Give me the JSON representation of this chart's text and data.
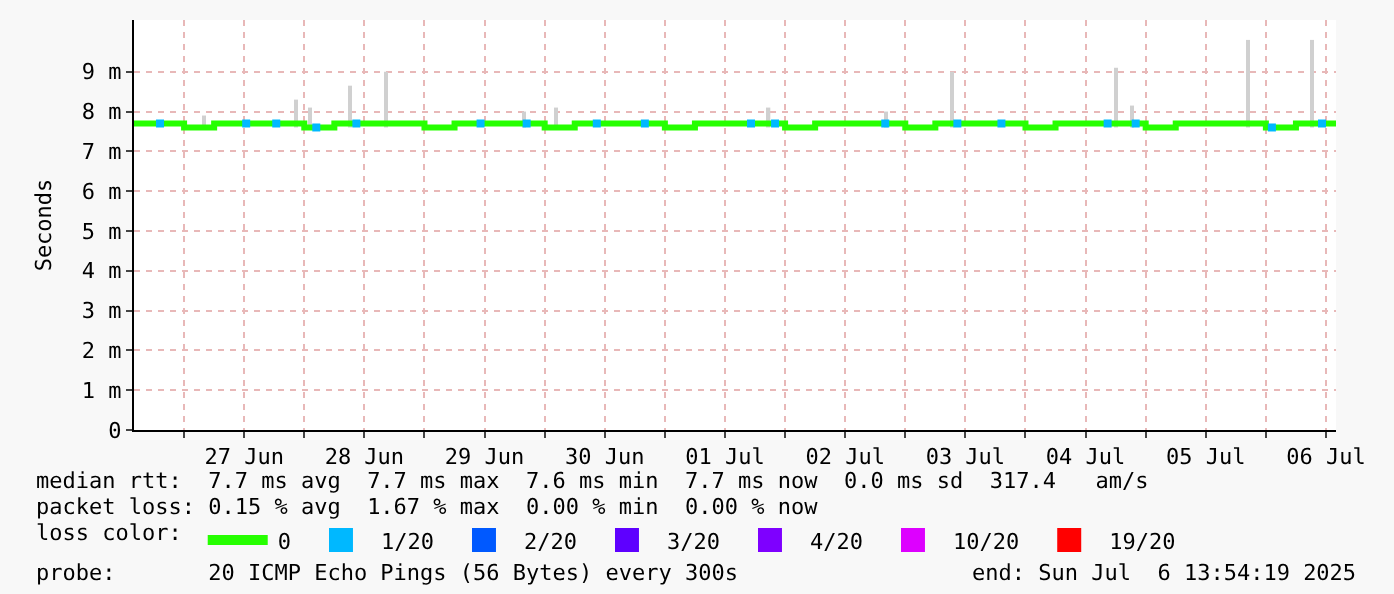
{
  "chart_data": {
    "type": "step",
    "ylabel": "Seconds",
    "legend_title": "loss color:",
    "xlim": [
      "2025-06-26T14:00",
      "2025-07-06T14:00"
    ],
    "xticks": [
      {
        "value": "2025-06-27T00:00",
        "label": null
      },
      {
        "value": "2025-06-27T12:00",
        "label": "27 Jun"
      },
      {
        "value": "2025-06-28T00:00",
        "label": null
      },
      {
        "value": "2025-06-28T12:00",
        "label": "28 Jun"
      },
      {
        "value": "2025-06-29T00:00",
        "label": null
      },
      {
        "value": "2025-06-29T12:00",
        "label": "29 Jun"
      },
      {
        "value": "2025-06-30T00:00",
        "label": null
      },
      {
        "value": "2025-06-30T12:00",
        "label": "30 Jun"
      },
      {
        "value": "2025-07-01T00:00",
        "label": null
      },
      {
        "value": "2025-07-01T12:00",
        "label": "01 Jul"
      },
      {
        "value": "2025-07-02T00:00",
        "label": null
      },
      {
        "value": "2025-07-02T12:00",
        "label": "02 Jul"
      },
      {
        "value": "2025-07-03T00:00",
        "label": null
      },
      {
        "value": "2025-07-03T12:00",
        "label": "03 Jul"
      },
      {
        "value": "2025-07-04T00:00",
        "label": null
      },
      {
        "value": "2025-07-04T12:00",
        "label": "04 Jul"
      },
      {
        "value": "2025-07-05T00:00",
        "label": null
      },
      {
        "value": "2025-07-05T12:00",
        "label": "05 Jul"
      },
      {
        "value": "2025-07-06T00:00",
        "label": null
      },
      {
        "value": "2025-07-06T12:00",
        "label": "06 Jul"
      }
    ],
    "ylim": [
      0,
      10.3
    ],
    "yticks": [
      0,
      {
        "value": 1,
        "label": "1 m"
      },
      {
        "value": 2,
        "label": "2 m"
      },
      {
        "value": 3,
        "label": "3 m"
      },
      {
        "value": 4,
        "label": "4 m"
      },
      {
        "value": 5,
        "label": "5 m"
      },
      {
        "value": 6,
        "label": "6 m"
      },
      {
        "value": 7,
        "label": "7 m"
      },
      {
        "value": 8,
        "label": "8 m"
      },
      {
        "value": 9,
        "label": "9 m"
      }
    ],
    "grid": true,
    "legend": "bottom",
    "series": [
      {
        "type": "bar",
        "color": "#d0d0d0",
        "x": [
          "2025-06-27T04:00",
          "2025-06-27T22:24",
          "2025-06-28T01:12",
          "2025-06-28T09:12",
          "2025-06-28T16:24",
          "2025-06-29T20:00",
          "2025-06-30T02:24",
          "2025-07-01T20:48",
          "2025-07-02T20:00",
          "2025-07-03T09:12",
          "2025-07-04T18:00",
          "2025-07-04T21:12",
          "2025-07-05T20:24",
          "2025-07-06T09:12"
        ],
        "base": [
          7.6,
          7.6,
          7.6,
          7.6,
          7.6,
          7.6,
          7.6,
          7.6,
          7.6,
          7.6,
          7.6,
          7.6,
          7.6,
          7.6
        ],
        "values": [
          0.3,
          0.7,
          0.5,
          1.05,
          1.4,
          0.4,
          0.5,
          0.5,
          0.4,
          1.4,
          1.5,
          0.55,
          2.2,
          2.2
        ]
      },
      {
        "name": "0",
        "color": "#26ff00",
        "x": [
          "2025-06-26T14:00",
          "2025-06-26T18:00",
          "2025-06-26T22:00",
          "2025-06-27T00:00",
          "2025-06-27T06:00",
          "2025-06-28T00:00",
          "2025-06-28T06:00",
          "2025-06-29T00:00",
          "2025-06-29T06:00",
          "2025-06-30T00:00",
          "2025-06-30T06:00",
          "2025-07-01T00:00",
          "2025-07-01T06:00",
          "2025-07-02T00:00",
          "2025-07-02T06:00",
          "2025-07-03T00:00",
          "2025-07-03T06:00",
          "2025-07-04T00:00",
          "2025-07-04T06:00",
          "2025-07-05T00:00",
          "2025-07-05T06:00",
          "2025-07-06T00:00",
          "2025-07-06T06:00",
          "2025-07-06T14:00"
        ],
        "values": [
          7.7,
          7.7,
          7.7,
          7.6,
          7.7,
          7.6,
          7.7,
          7.6,
          7.7,
          7.6,
          7.7,
          7.6,
          7.7,
          7.6,
          7.7,
          7.6,
          7.7,
          7.6,
          7.7,
          7.6,
          7.7,
          7.6,
          7.7,
          7.7
        ]
      },
      {
        "name": "1/20",
        "type": "scatter",
        "marker": "square",
        "color": "#00b8ff",
        "x": [
          "2025-06-26T19:12",
          "2025-06-27T12:24",
          "2025-06-27T18:24",
          "2025-06-28T02:24",
          "2025-06-28T10:24",
          "2025-06-29T11:12",
          "2025-06-29T20:24",
          "2025-06-30T10:24",
          "2025-06-30T20:00",
          "2025-07-01T17:12",
          "2025-07-01T22:00",
          "2025-07-02T20:00",
          "2025-07-03T10:24",
          "2025-07-03T19:12",
          "2025-07-04T16:24",
          "2025-07-04T22:00",
          "2025-07-06T01:12",
          "2025-07-06T11:12"
        ],
        "values": [
          7.7,
          7.7,
          7.7,
          7.6,
          7.7,
          7.7,
          7.7,
          7.7,
          7.7,
          7.7,
          7.7,
          7.7,
          7.7,
          7.7,
          7.7,
          7.7,
          7.6,
          7.7
        ]
      },
      {
        "name": "2/20",
        "type": "scatter",
        "marker": "square",
        "color": "#0059ff"
      },
      {
        "name": "3/20",
        "type": "scatter",
        "marker": "square",
        "color": "#5e00ff"
      },
      {
        "name": "4/20",
        "type": "scatter",
        "marker": "square",
        "color": "#7e00ff"
      },
      {
        "name": "10/20",
        "type": "scatter",
        "marker": "square",
        "color": "#dd00ff"
      },
      {
        "name": "19/20",
        "type": "scatter",
        "marker": "square",
        "color": "#ff0000"
      }
    ],
    "annotations": [
      "median rtt:  7.7 ms avg  7.7 ms max  7.6 ms min  7.7 ms now  0.0 ms sd  317.4   am/s",
      "packet loss: 0.15 % avg  1.67 % max  0.00 % min  0.00 % now",
      "probe:       20 ICMP Echo Pings (56 Bytes) every 300s",
      "end: Sun Jul  6 13:54:19 2025"
    ]
  }
}
